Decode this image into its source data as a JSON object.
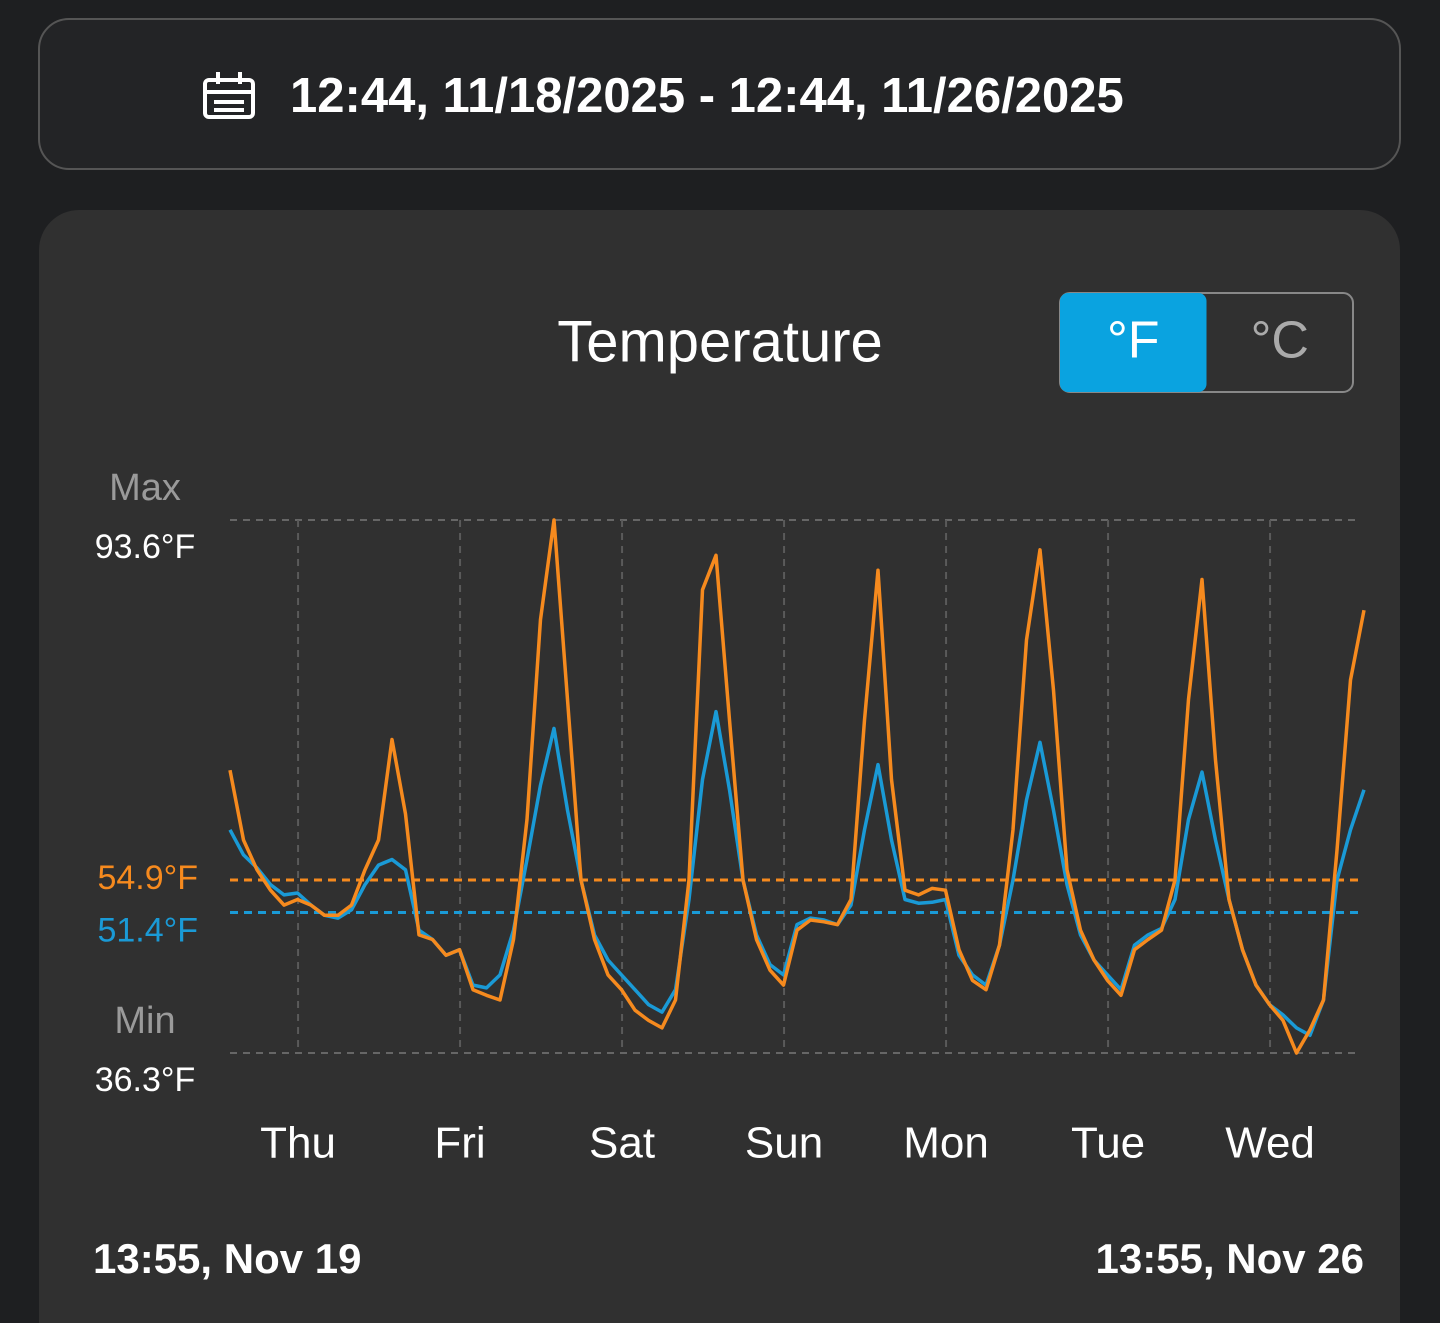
{
  "header": {
    "date_range": "12:44, 11/18/2025 - 12:44, 11/26/2025"
  },
  "unit_toggle": {
    "options": [
      "°F",
      "°C"
    ],
    "selected": 0,
    "selected_color": "#0aa3e0"
  },
  "chart_data": {
    "type": "line",
    "title": "Temperature",
    "x_labels": [
      "Thu",
      "Fri",
      "Sat",
      "Sun",
      "Mon",
      "Tue",
      "Wed"
    ],
    "start_label": "13:55, Nov 19",
    "end_label": "13:55, Nov 26",
    "ylim": [
      36.3,
      93.6
    ],
    "yticks": [
      {
        "value": 93.6,
        "label": "93.6°F",
        "caption": "Max"
      },
      {
        "value": 36.3,
        "label": "36.3°F",
        "caption": "Min"
      }
    ],
    "reference_lines": [
      {
        "value": 54.9,
        "label": "54.9°F",
        "color": "#f68a1e"
      },
      {
        "value": 51.4,
        "label": "51.4°F",
        "color": "#1a9ad6"
      }
    ],
    "grid": true,
    "series": [
      {
        "color": "#f68a1e",
        "values": [
          66.7,
          59.2,
          56.0,
          53.8,
          52.2,
          52.8,
          52.2,
          51.1,
          51.1,
          52.2,
          56.0,
          59.2,
          70.0,
          62.0,
          49.0,
          48.5,
          46.8,
          47.4,
          43.1,
          42.5,
          42.0,
          48.5,
          61.4,
          82.9,
          93.6,
          74.3,
          54.9,
          48.5,
          44.7,
          43.1,
          40.9,
          39.8,
          39.0,
          42.0,
          54.9,
          86.1,
          89.8,
          72.1,
          54.9,
          48.5,
          45.2,
          43.6,
          49.5,
          50.6,
          50.4,
          50.1,
          52.8,
          72.1,
          88.2,
          65.7,
          53.8,
          53.3,
          54.0,
          53.8,
          47.4,
          44.1,
          43.1,
          47.9,
          60.3,
          80.7,
          90.4,
          75.3,
          56.0,
          49.5,
          46.3,
          44.1,
          42.5,
          47.4,
          48.5,
          49.5,
          54.9,
          74.3,
          87.2,
          67.8,
          52.8,
          47.4,
          43.6,
          41.5,
          39.8,
          36.3,
          38.8,
          42.0,
          58.1,
          76.4,
          83.9
        ]
      },
      {
        "color": "#1a9ad6",
        "values": [
          60.3,
          57.6,
          56.2,
          54.4,
          53.3,
          53.5,
          52.2,
          51.1,
          50.8,
          51.7,
          54.4,
          56.5,
          57.1,
          56.0,
          49.5,
          48.5,
          46.8,
          47.4,
          43.6,
          43.3,
          44.7,
          49.5,
          57.1,
          65.1,
          71.2,
          62.4,
          54.9,
          49.0,
          46.3,
          44.7,
          43.1,
          41.5,
          40.7,
          43.1,
          52.8,
          65.7,
          73.0,
          64.6,
          54.9,
          49.0,
          45.8,
          44.7,
          50.1,
          50.8,
          50.6,
          50.1,
          52.2,
          60.3,
          67.3,
          59.2,
          52.8,
          52.4,
          52.5,
          52.8,
          46.8,
          44.7,
          43.6,
          47.9,
          54.9,
          63.5,
          69.7,
          62.4,
          54.4,
          49.0,
          46.3,
          44.7,
          43.1,
          47.9,
          49.0,
          49.7,
          52.8,
          61.4,
          66.5,
          59.2,
          52.8,
          47.4,
          43.6,
          41.5,
          40.4,
          39.0,
          38.2,
          42.0,
          54.9,
          60.3,
          64.6
        ]
      }
    ]
  }
}
